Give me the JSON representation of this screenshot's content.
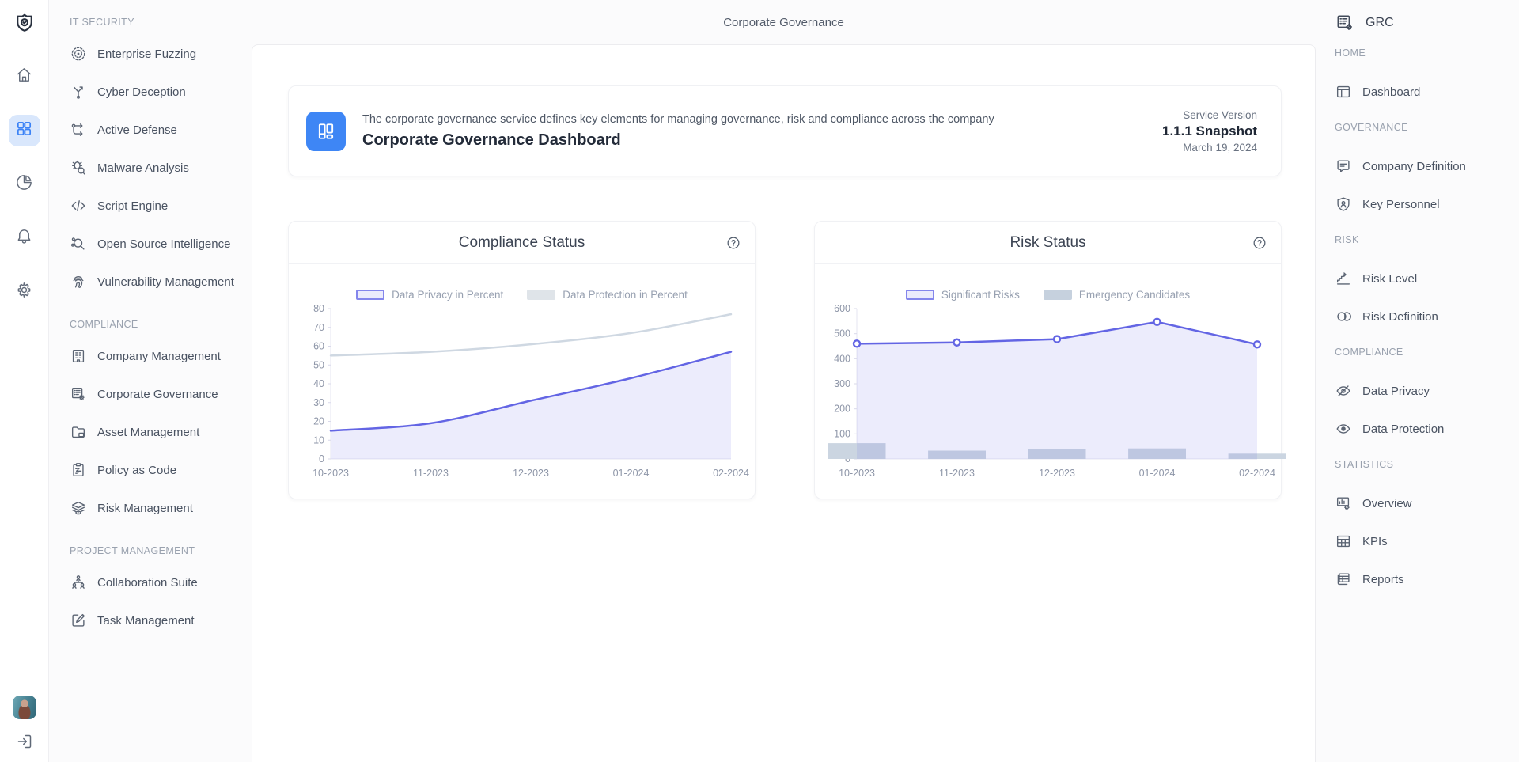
{
  "topbar": {
    "title": "Corporate Governance"
  },
  "brand": {
    "label": "GRC",
    "icon": "list-gear"
  },
  "rail": {
    "logo_icon": "shield-check",
    "items": [
      {
        "name": "home",
        "icon": "home",
        "active": false
      },
      {
        "name": "apps",
        "icon": "grid",
        "active": true
      },
      {
        "name": "statistics",
        "icon": "pie-chart",
        "active": false
      },
      {
        "name": "notifications",
        "icon": "bell",
        "active": false
      },
      {
        "name": "settings",
        "icon": "gear",
        "active": false
      }
    ],
    "logout_icon": "logout"
  },
  "left_sidebar": {
    "sections": [
      {
        "title": "IT SECURITY",
        "items": [
          {
            "label": "Enterprise Fuzzing",
            "icon": "target-rings"
          },
          {
            "label": "Cyber Deception",
            "icon": "branch-y"
          },
          {
            "label": "Active Defense",
            "icon": "flow-route"
          },
          {
            "label": "Malware Analysis",
            "icon": "bug-search"
          },
          {
            "label": "Script Engine",
            "icon": "code"
          },
          {
            "label": "Open Source Intelligence",
            "icon": "search-network"
          },
          {
            "label": "Vulnerability Management",
            "icon": "fingerprint"
          }
        ]
      },
      {
        "title": "COMPLIANCE",
        "items": [
          {
            "label": "Company Management",
            "icon": "building"
          },
          {
            "label": "Corporate Governance",
            "icon": "list-gear"
          },
          {
            "label": "Asset Management",
            "icon": "folder-box"
          },
          {
            "label": "Policy as Code",
            "icon": "clipboard-arrow"
          },
          {
            "label": "Risk Management",
            "icon": "layers-eye"
          }
        ]
      },
      {
        "title": "PROJECT MANAGEMENT",
        "items": [
          {
            "label": "Collaboration Suite",
            "icon": "org-people"
          },
          {
            "label": "Task Management",
            "icon": "square-pencil"
          }
        ]
      }
    ]
  },
  "hero": {
    "icon": "dashboard-tile",
    "description": "The corporate governance service defines key elements for managing governance, risk and compliance across the company",
    "title": "Corporate Governance Dashboard",
    "version_label": "Service Version",
    "version": "1.1.1 Snapshot",
    "date": "March 19, 2024",
    "tile_color": "#3e86f5"
  },
  "right_sidebar": {
    "sections": [
      {
        "title": "HOME",
        "items": [
          {
            "label": "Dashboard",
            "icon": "window-layout"
          }
        ]
      },
      {
        "title": "GOVERNANCE",
        "items": [
          {
            "label": "Company Definition",
            "icon": "comment-lines"
          },
          {
            "label": "Key Personnel",
            "icon": "shield-person"
          }
        ]
      },
      {
        "title": "RISK",
        "items": [
          {
            "label": "Risk Level",
            "icon": "stairs"
          },
          {
            "label": "Risk Definition",
            "icon": "split-circles"
          }
        ]
      },
      {
        "title": "COMPLIANCE",
        "items": [
          {
            "label": "Data Privacy",
            "icon": "eye-off"
          },
          {
            "label": "Data Protection",
            "icon": "eye"
          }
        ]
      },
      {
        "title": "STATISTICS",
        "items": [
          {
            "label": "Overview",
            "icon": "board-chart"
          },
          {
            "label": "KPIs",
            "icon": "table"
          },
          {
            "label": "Reports",
            "icon": "stacked-tables"
          }
        ]
      }
    ]
  },
  "chart_data": [
    {
      "type": "line",
      "title": "Compliance Status",
      "help_icon": "question-circle",
      "categories": [
        "10-2023",
        "11-2023",
        "12-2023",
        "01-2024",
        "02-2024"
      ],
      "ylim": [
        0,
        80
      ],
      "ytick_step": 10,
      "grid": false,
      "legend_position": "top",
      "series": [
        {
          "name": "Data Privacy in Percent",
          "type": "line",
          "smooth": true,
          "values": [
            15,
            19,
            31,
            43,
            57
          ],
          "color": "#6365e4",
          "fill": "rgba(99,101,228,0.12)",
          "swatch_fill": "#ebebfc",
          "swatch_border": "#8486ec"
        },
        {
          "name": "Data Protection in Percent",
          "type": "line",
          "smooth": true,
          "values": [
            55,
            57,
            61,
            67,
            77
          ],
          "color": "#cfd8e2",
          "swatch_fill": "#dfe4e9"
        }
      ]
    },
    {
      "type": "bar+line",
      "title": "Risk Status",
      "help_icon": "question-circle",
      "categories": [
        "10-2023",
        "11-2023",
        "12-2023",
        "01-2024",
        "02-2024"
      ],
      "ylim": [
        0,
        600
      ],
      "ytick_step": 100,
      "grid": false,
      "legend_position": "top",
      "series": [
        {
          "name": "Significant Risks",
          "type": "line",
          "smooth": false,
          "markers": true,
          "values": [
            460,
            465,
            478,
            547,
            457
          ],
          "color": "#6365e4",
          "fill": "rgba(99,101,228,0.12)",
          "swatch_fill": "#ebebfc",
          "swatch_border": "#8486ec"
        },
        {
          "name": "Emergency Candidates",
          "type": "bar",
          "values": [
            63,
            33,
            38,
            42,
            21
          ],
          "color": "#cbd5e1",
          "swatch_fill": "#c6d1de"
        }
      ]
    }
  ],
  "colors": {
    "accent_blue": "#3c83f6",
    "accent_blue_bg": "#d9e7fc",
    "chart_purple": "#6365e4",
    "chart_gray_line": "#cfd8e2",
    "bar_gray": "#cbd5e1",
    "panel_border": "#ececef"
  }
}
